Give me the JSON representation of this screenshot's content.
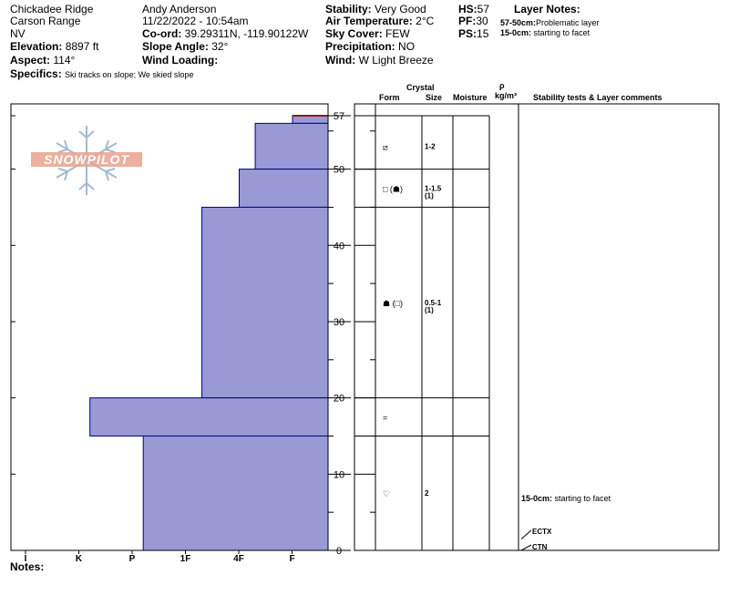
{
  "header": {
    "location": "Chickadee Ridge",
    "range": "Carson Range",
    "state": "NV",
    "elevation_label": "Elevation:",
    "elevation_value": "8897 ft",
    "aspect_label": "Aspect:",
    "aspect_value": "114°",
    "specifics_label": "Specifics:",
    "specifics_value": "Ski tracks on slope; We skied slope",
    "observer": "Andy Anderson",
    "datetime": "11/22/2022 - 10:54am",
    "coord_label": "Co-ord:",
    "coord_value": "39.29311N, -119.90122W",
    "slope_label": "Slope Angle:",
    "slope_value": "32°",
    "wind_loading_label": "Wind Loading:",
    "wind_loading_value": "",
    "stability_label": "Stability:",
    "stability_value": "Very Good",
    "air_temp_label": "Air Temperature:",
    "air_temp_value": "2°C",
    "sky_label": "Sky Cover:",
    "sky_value": "FEW",
    "precip_label": "Precipitation:",
    "precip_value": "NO",
    "wind_label": "Wind:",
    "wind_value": "W Light Breeze",
    "hs_label": "HS:",
    "hs_value": "57",
    "pf_label": "PF:",
    "pf_value": "30",
    "ps_label": "PS:",
    "ps_value": "15",
    "layer_notes_title": "Layer Notes:",
    "layer_notes": [
      {
        "range": "57-50cm:",
        "text": "Problematic layer"
      },
      {
        "range": "15-0cm:",
        "text": "starting to facet"
      }
    ]
  },
  "columns": {
    "crystal": "Crystal",
    "form": "Form",
    "size": "Size",
    "moisture": "Moisture",
    "rho": "ρ",
    "density": "kg/m³",
    "stability": "Stability tests & Layer comments"
  },
  "logo_text": "SNOWPILOT",
  "notes_label": "Notes:",
  "chart_data": {
    "type": "bar",
    "orientation": "horizontal-profile",
    "y_unit": "cm",
    "ylim": [
      0,
      57
    ],
    "y_ticks": [
      0,
      10,
      20,
      30,
      40,
      50,
      57
    ],
    "x_categories": [
      "I",
      "K",
      "P",
      "1F",
      "4F",
      "F"
    ],
    "layers": [
      {
        "top": 57,
        "bottom": 56,
        "hardness": "F",
        "hardness_index": 0.0,
        "form": "",
        "size": ""
      },
      {
        "top": 56,
        "bottom": 50,
        "hardness": "F",
        "hardness_index": 0.7,
        "form": "⧄",
        "size": "1-2"
      },
      {
        "top": 50,
        "bottom": 45,
        "hardness": "F+",
        "hardness_index": 1.0,
        "form": "□ (☗)",
        "size": "1-1.5",
        "size2": "(1)"
      },
      {
        "top": 45,
        "bottom": 20,
        "hardness": "4F-",
        "hardness_index": 1.7,
        "form": "☗ (□)",
        "size": "0.5-1",
        "size2": "(1)"
      },
      {
        "top": 20,
        "bottom": 15,
        "hardness": "P",
        "hardness_index": 3.8,
        "form": "=",
        "size": ""
      },
      {
        "top": 15,
        "bottom": 0,
        "hardness": "1F",
        "hardness_index": 2.8,
        "form": "♡",
        "size": "2"
      }
    ],
    "crust_line": {
      "depth": 57,
      "color": "#8b1a1a"
    },
    "bar_fill": "#9999d6",
    "bar_stroke": "#000080",
    "stability_comments": [
      {
        "depth": 7,
        "label": "15-0cm:",
        "text": "starting to facet"
      }
    ],
    "stability_tests": [
      {
        "depth": 1.5,
        "label": "ECTX"
      },
      {
        "depth": 0,
        "label": "CTN"
      }
    ]
  }
}
